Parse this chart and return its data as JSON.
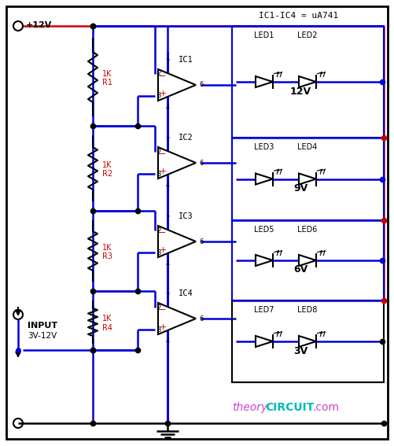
{
  "title": "IC1-IC4 = uA741",
  "bg": "#ffffff",
  "blue": "#0000dd",
  "red": "#cc0000",
  "black": "#000000",
  "theory_pink": "#cc44cc",
  "circuit_cyan": "#00bbbb",
  "figsize": [
    5.01,
    5.67
  ],
  "dpi": 100,
  "ic_labels": [
    "IC1",
    "IC2",
    "IC3",
    "IC4"
  ],
  "led_labels": [
    "LED1",
    "LED2",
    "LED3",
    "LED4",
    "LED5",
    "LED6",
    "LED7",
    "LED8"
  ],
  "volt_labels": [
    "12V",
    "9V",
    "6V",
    "3V"
  ],
  "res_labels": [
    "1K\nR1",
    "1K\nR2",
    "1K\nR3",
    "1K\nR4"
  ]
}
